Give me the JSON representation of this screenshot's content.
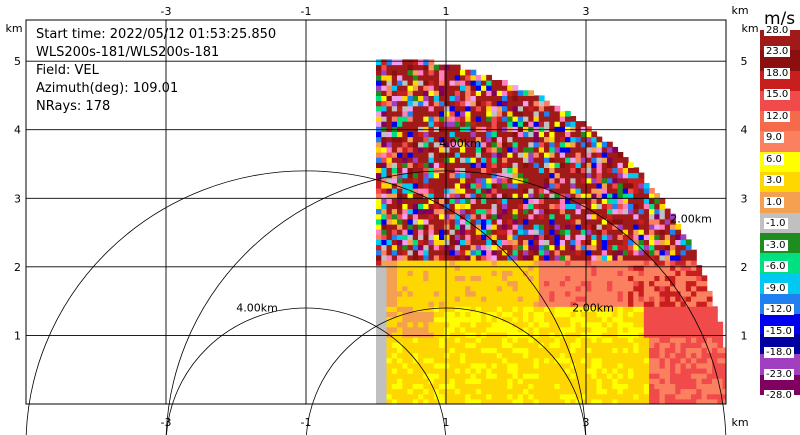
{
  "chart_data": {
    "type": "heatmap",
    "info_lines": [
      "Start time: 2022/05/12 01:53:25.850",
      "WLS200s-181/WLS200s-181",
      "Field: VEL",
      "Azimuth(deg): 109.01",
      "NRays: 178"
    ],
    "x_ticks": [
      "-3",
      "-1",
      "1",
      "3"
    ],
    "y_ticks": [
      "1",
      "2",
      "3",
      "4",
      "5"
    ],
    "x_unit": "km",
    "y_unit": "km",
    "xlim": [
      -5.0,
      5.0
    ],
    "ylim": [
      0.0,
      5.6
    ],
    "range_rings": [
      {
        "radius_km": 2.0,
        "label": "2.00km"
      },
      {
        "radius_km": 4.0,
        "label": "4.00km"
      },
      {
        "radius_km": 2.0,
        "label": "2.00km"
      },
      {
        "radius_km": 4.0,
        "label": "4.00km"
      }
    ],
    "colorbar": {
      "unit": "m/s",
      "labels": [
        "28.0",
        "23.0",
        "18.0",
        "15.0",
        "12.0",
        "9.0",
        "6.0",
        "3.0",
        "1.0",
        "-1.0",
        "-3.0",
        "-6.0",
        "-9.0",
        "-12.0",
        "-15.0",
        "-18.0",
        "-23.0",
        "-28.0"
      ],
      "colors": [
        "#a01a1a",
        "#8c0f0f",
        "#c81e1e",
        "#f04a4a",
        "#f46a4a",
        "#fb8060",
        "#ffff00",
        "#ffd700",
        "#f4a050",
        "#c0c0c0",
        "#1e8c1e",
        "#00e080",
        "#00c8f0",
        "#2080f0",
        "#0000f0",
        "#0000a0",
        "#a040c0",
        "#800060"
      ]
    },
    "field": "VEL",
    "max_range_km": 5.05
  }
}
